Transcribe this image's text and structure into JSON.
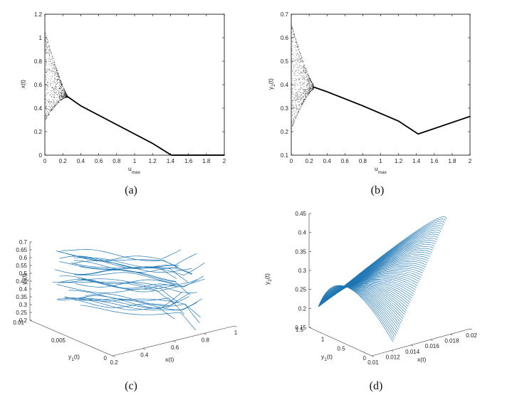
{
  "chart_data": [
    {
      "id": "a",
      "type": "scatter",
      "caption": "(a)",
      "xlabel": "u",
      "xlabel_sub": "max",
      "ylabel": "x(t)",
      "xlim": [
        0,
        2
      ],
      "ylim": [
        0,
        1.2
      ],
      "xticks": [
        "0",
        "0.2",
        "0.4",
        "0.6",
        "0.8",
        "1",
        "1.2",
        "1.4",
        "1.6",
        "1.8",
        "2"
      ],
      "yticks": [
        "0",
        "0.2",
        "0.4",
        "0.6",
        "0.8",
        "1",
        "1.2"
      ],
      "description_points": {
        "oscillation_start_u": 0,
        "oscillation_end_u": 0.25,
        "envelope_low_at_0": 0.3,
        "envelope_high_at_0": 1.05,
        "branch": [
          [
            0.25,
            0.5
          ],
          [
            0.4,
            0.42
          ],
          [
            0.8,
            0.26
          ],
          [
            1.2,
            0.1
          ],
          [
            1.41,
            0.0
          ],
          [
            2.0,
            0.0
          ]
        ]
      },
      "color": "#000000"
    },
    {
      "id": "b",
      "type": "scatter",
      "caption": "(b)",
      "xlabel": "u",
      "xlabel_sub": "max",
      "ylabel": "y",
      "ylabel_sub": "2",
      "ylabel_suffix": "(t)",
      "xlim": [
        0,
        2
      ],
      "ylim": [
        0.1,
        0.7
      ],
      "xticks": [
        "0",
        "0.2",
        "0.4",
        "0.6",
        "0.8",
        "1",
        "1.2",
        "1.4",
        "1.6",
        "1.8",
        "2"
      ],
      "yticks": [
        "0.1",
        "0.2",
        "0.3",
        "0.4",
        "0.5",
        "0.6",
        "0.7"
      ],
      "description_points": {
        "oscillation_start_u": 0,
        "oscillation_end_u": 0.25,
        "envelope_low_at_0": 0.22,
        "envelope_high_at_0": 0.65,
        "branch": [
          [
            0.25,
            0.39
          ],
          [
            0.4,
            0.37
          ],
          [
            0.8,
            0.31
          ],
          [
            1.2,
            0.245
          ],
          [
            1.42,
            0.19
          ],
          [
            2.0,
            0.265
          ]
        ]
      },
      "color": "#000000"
    },
    {
      "id": "c",
      "type": "line",
      "caption": "(c)",
      "view": "3d",
      "xlabel": "x(t)",
      "ylabel": "y",
      "ylabel_sub": "1",
      "ylabel_suffix": "(t)",
      "zlabel": "y",
      "zlabel_sub": "2",
      "zlabel_suffix": "(t)",
      "xlim": [
        0.2,
        1
      ],
      "ylim": [
        0,
        0.01
      ],
      "zlim": [
        0.2,
        0.7
      ],
      "xticks": [
        "0.2",
        "0.4",
        "0.6",
        "0.8",
        "1"
      ],
      "yticks": [
        "0",
        "0.005",
        "0.01"
      ],
      "zticks": [
        "0.2",
        "0.25",
        "0.3",
        "0.35",
        "0.4",
        "0.45",
        "0.5",
        "0.55",
        "0.6",
        "0.65",
        "0.7"
      ],
      "color": "#1f77b4"
    },
    {
      "id": "d",
      "type": "line",
      "caption": "(d)",
      "view": "3d",
      "xlabel": "x(t)",
      "ylabel": "y",
      "ylabel_sub": "1",
      "ylabel_suffix": "(t)",
      "zlabel": "y",
      "zlabel_sub": "2",
      "zlabel_suffix": "(t)",
      "xlim": [
        0.01,
        0.02
      ],
      "ylim": [
        0,
        1.5
      ],
      "zlim": [
        0.15,
        0.45
      ],
      "xticks": [
        "0.01",
        "0.012",
        "0.014",
        "0.016",
        "0.018",
        "0.02"
      ],
      "yticks": [
        "0",
        "0.5",
        "1",
        "1.5"
      ],
      "zticks": [
        "0.15",
        "0.2",
        "0.25",
        "0.3",
        "0.35",
        "0.4",
        "0.45"
      ],
      "color": "#1f77b4"
    }
  ]
}
